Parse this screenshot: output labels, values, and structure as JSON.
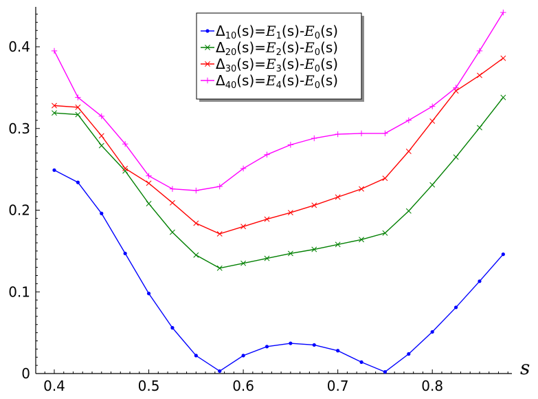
{
  "chart_data": {
    "type": "line",
    "title": "",
    "xlabel": "s",
    "ylabel": "",
    "xlim": [
      0.385,
      0.885
    ],
    "ylim": [
      0,
      0.45
    ],
    "x_ticks": [
      0.4,
      0.5,
      0.6,
      0.7,
      0.8
    ],
    "x_tick_labels": [
      "0.4",
      "0.5",
      "0.6",
      "0.7",
      "0.8"
    ],
    "y_ticks": [
      0,
      0.1,
      0.2,
      0.3,
      0.4
    ],
    "y_tick_labels": [
      "0",
      "0.1",
      "0.2",
      "0.3",
      "0.4"
    ],
    "grid": false,
    "legend_position": "top-center",
    "x": [
      0.4,
      0.425,
      0.45,
      0.475,
      0.5,
      0.525,
      0.55,
      0.575,
      0.6,
      0.625,
      0.65,
      0.675,
      0.7,
      0.725,
      0.75,
      0.775,
      0.8,
      0.825,
      0.85,
      0.875
    ],
    "series": [
      {
        "name": "Δ10(s)=E1(s)-E0(s)",
        "label_parts": {
          "delta": "Δ",
          "dsub": "10",
          "mid": "(s)=",
          "e1": "E",
          "e1sub": "1",
          "tail1": "(s)-",
          "e0": "E",
          "e0sub": "0",
          "tail2": "(s)"
        },
        "color": "#0000ff",
        "marker": "dot",
        "values": [
          0.249,
          0.234,
          0.196,
          0.147,
          0.098,
          0.056,
          0.022,
          0.003,
          0.022,
          0.033,
          0.037,
          0.035,
          0.028,
          0.014,
          0.002,
          0.024,
          0.051,
          0.081,
          0.113,
          0.146
        ]
      },
      {
        "name": "Δ20(s)=E2(s)-E0(s)",
        "label_parts": {
          "delta": "Δ",
          "dsub": "20",
          "mid": "(s)=",
          "e1": "E",
          "e1sub": "2",
          "tail1": "(s)-",
          "e0": "E",
          "e0sub": "0",
          "tail2": "(s)"
        },
        "color": "#007f00",
        "marker": "x",
        "values": [
          0.319,
          0.317,
          0.279,
          0.248,
          0.208,
          0.173,
          0.145,
          0.129,
          0.135,
          0.141,
          0.147,
          0.152,
          0.158,
          0.164,
          0.172,
          0.199,
          0.231,
          0.265,
          0.301,
          0.338
        ]
      },
      {
        "name": "Δ30(s)=E3(s)-E0(s)",
        "label_parts": {
          "delta": "Δ",
          "dsub": "30",
          "mid": "(s)=",
          "e1": "E",
          "e1sub": "3",
          "tail1": "(s)-",
          "e0": "E",
          "e0sub": "0",
          "tail2": "(s)"
        },
        "color": "#ff0000",
        "marker": "x",
        "values": [
          0.328,
          0.326,
          0.291,
          0.251,
          0.233,
          0.209,
          0.184,
          0.171,
          0.18,
          0.189,
          0.197,
          0.206,
          0.216,
          0.226,
          0.239,
          0.272,
          0.309,
          0.346,
          0.365,
          0.386
        ]
      },
      {
        "name": "Δ40(s)=E4(s)-E0(s)",
        "label_parts": {
          "delta": "Δ",
          "dsub": "40",
          "mid": "(s)=",
          "e1": "E",
          "e1sub": "4",
          "tail1": "(s)-",
          "e0": "E",
          "e0sub": "0",
          "tail2": "(s)"
        },
        "color": "#ff00ff",
        "marker": "plus",
        "values": [
          0.395,
          0.338,
          0.315,
          0.281,
          0.242,
          0.226,
          0.224,
          0.229,
          0.251,
          0.268,
          0.28,
          0.288,
          0.293,
          0.294,
          0.294,
          0.31,
          0.327,
          0.35,
          0.395,
          0.442
        ]
      }
    ]
  }
}
